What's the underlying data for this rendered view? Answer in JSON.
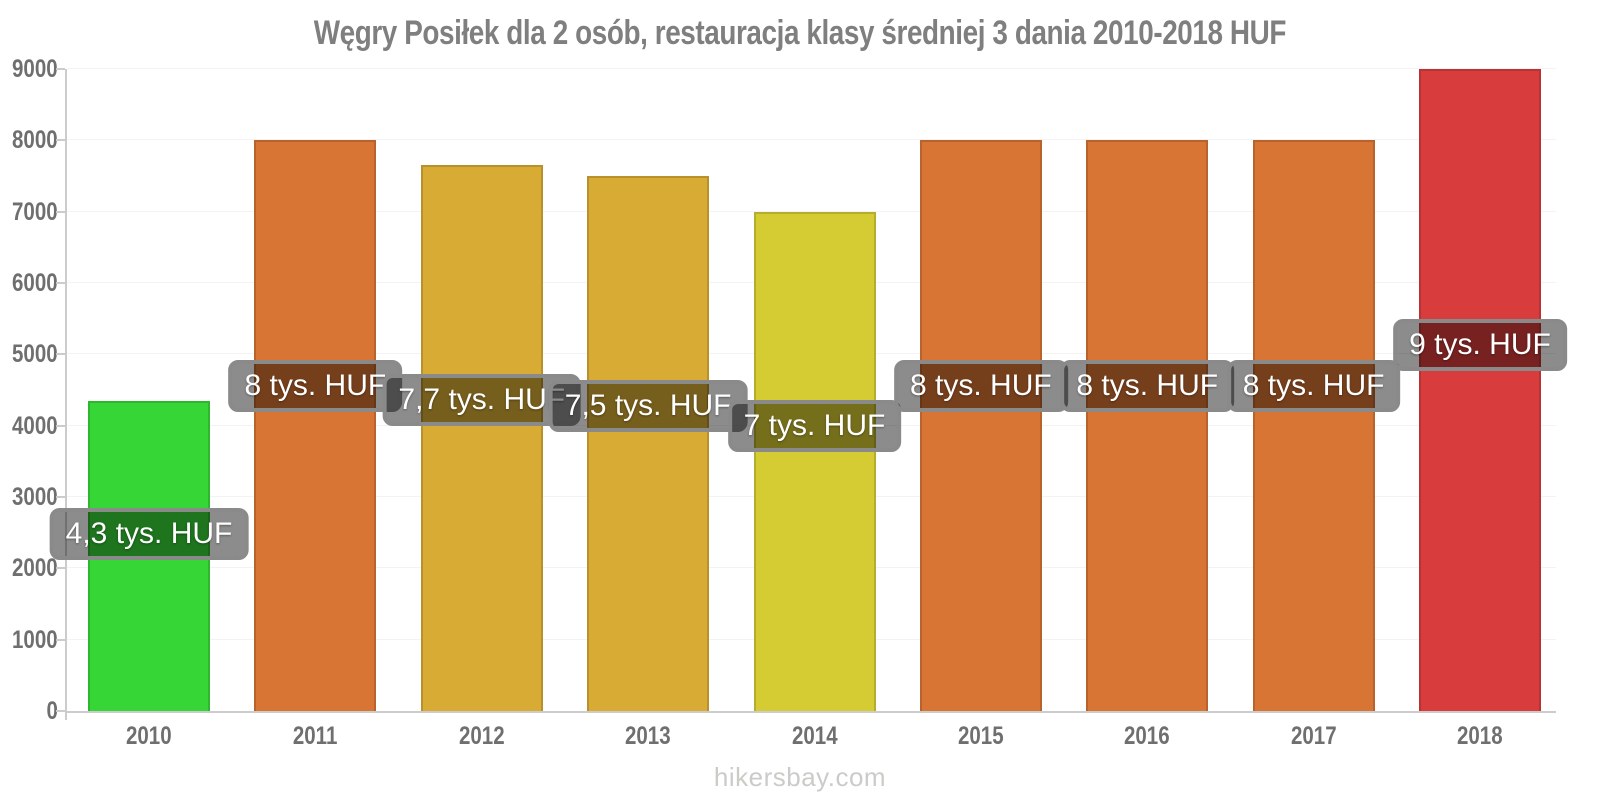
{
  "chart_data": {
    "type": "bar",
    "title": "Węgry Posiłek dla 2 osób, restauracja klasy średniej 3 dania 2010-2018 HUF",
    "xlabel": "",
    "ylabel": "",
    "ylim": [
      0,
      9000
    ],
    "yticks": [
      0,
      1000,
      2000,
      3000,
      4000,
      5000,
      6000,
      7000,
      8000,
      9000
    ],
    "grid": "horizontal-faint",
    "legend": "none",
    "categories": [
      "2010",
      "2011",
      "2012",
      "2013",
      "2014",
      "2015",
      "2016",
      "2017",
      "2018"
    ],
    "values": [
      4350,
      8000,
      7650,
      7500,
      7000,
      8000,
      8000,
      8000,
      9000
    ],
    "bar_value_labels": [
      "4,3 tys. HUF",
      "8 tys. HUF",
      "7,7 tys. HUF",
      "7,5 tys. HUF",
      "7 tys. HUF",
      "8 tys. HUF",
      "8 tys. HUF",
      "8 tys. HUF",
      "9 tys. HUF"
    ],
    "bar_colors": [
      "#37d637",
      "#d87434",
      "#d8ab34",
      "#d8ab34",
      "#d5cb33",
      "#d87434",
      "#d87434",
      "#d87434",
      "#d93c3c"
    ],
    "value_label_style": {
      "text_color": "#ffffff",
      "box_fill": "rgba(0,0,0,0.45)",
      "box_border": "#8a8a8a"
    },
    "title_color": "#7f7f7f",
    "tick_label_color": "#6f6f6f",
    "axis_color": "#cccccc",
    "grid_color": "#f3f3f3",
    "footer": "hikersbay.com",
    "footer_color": "#cbcbc7"
  }
}
